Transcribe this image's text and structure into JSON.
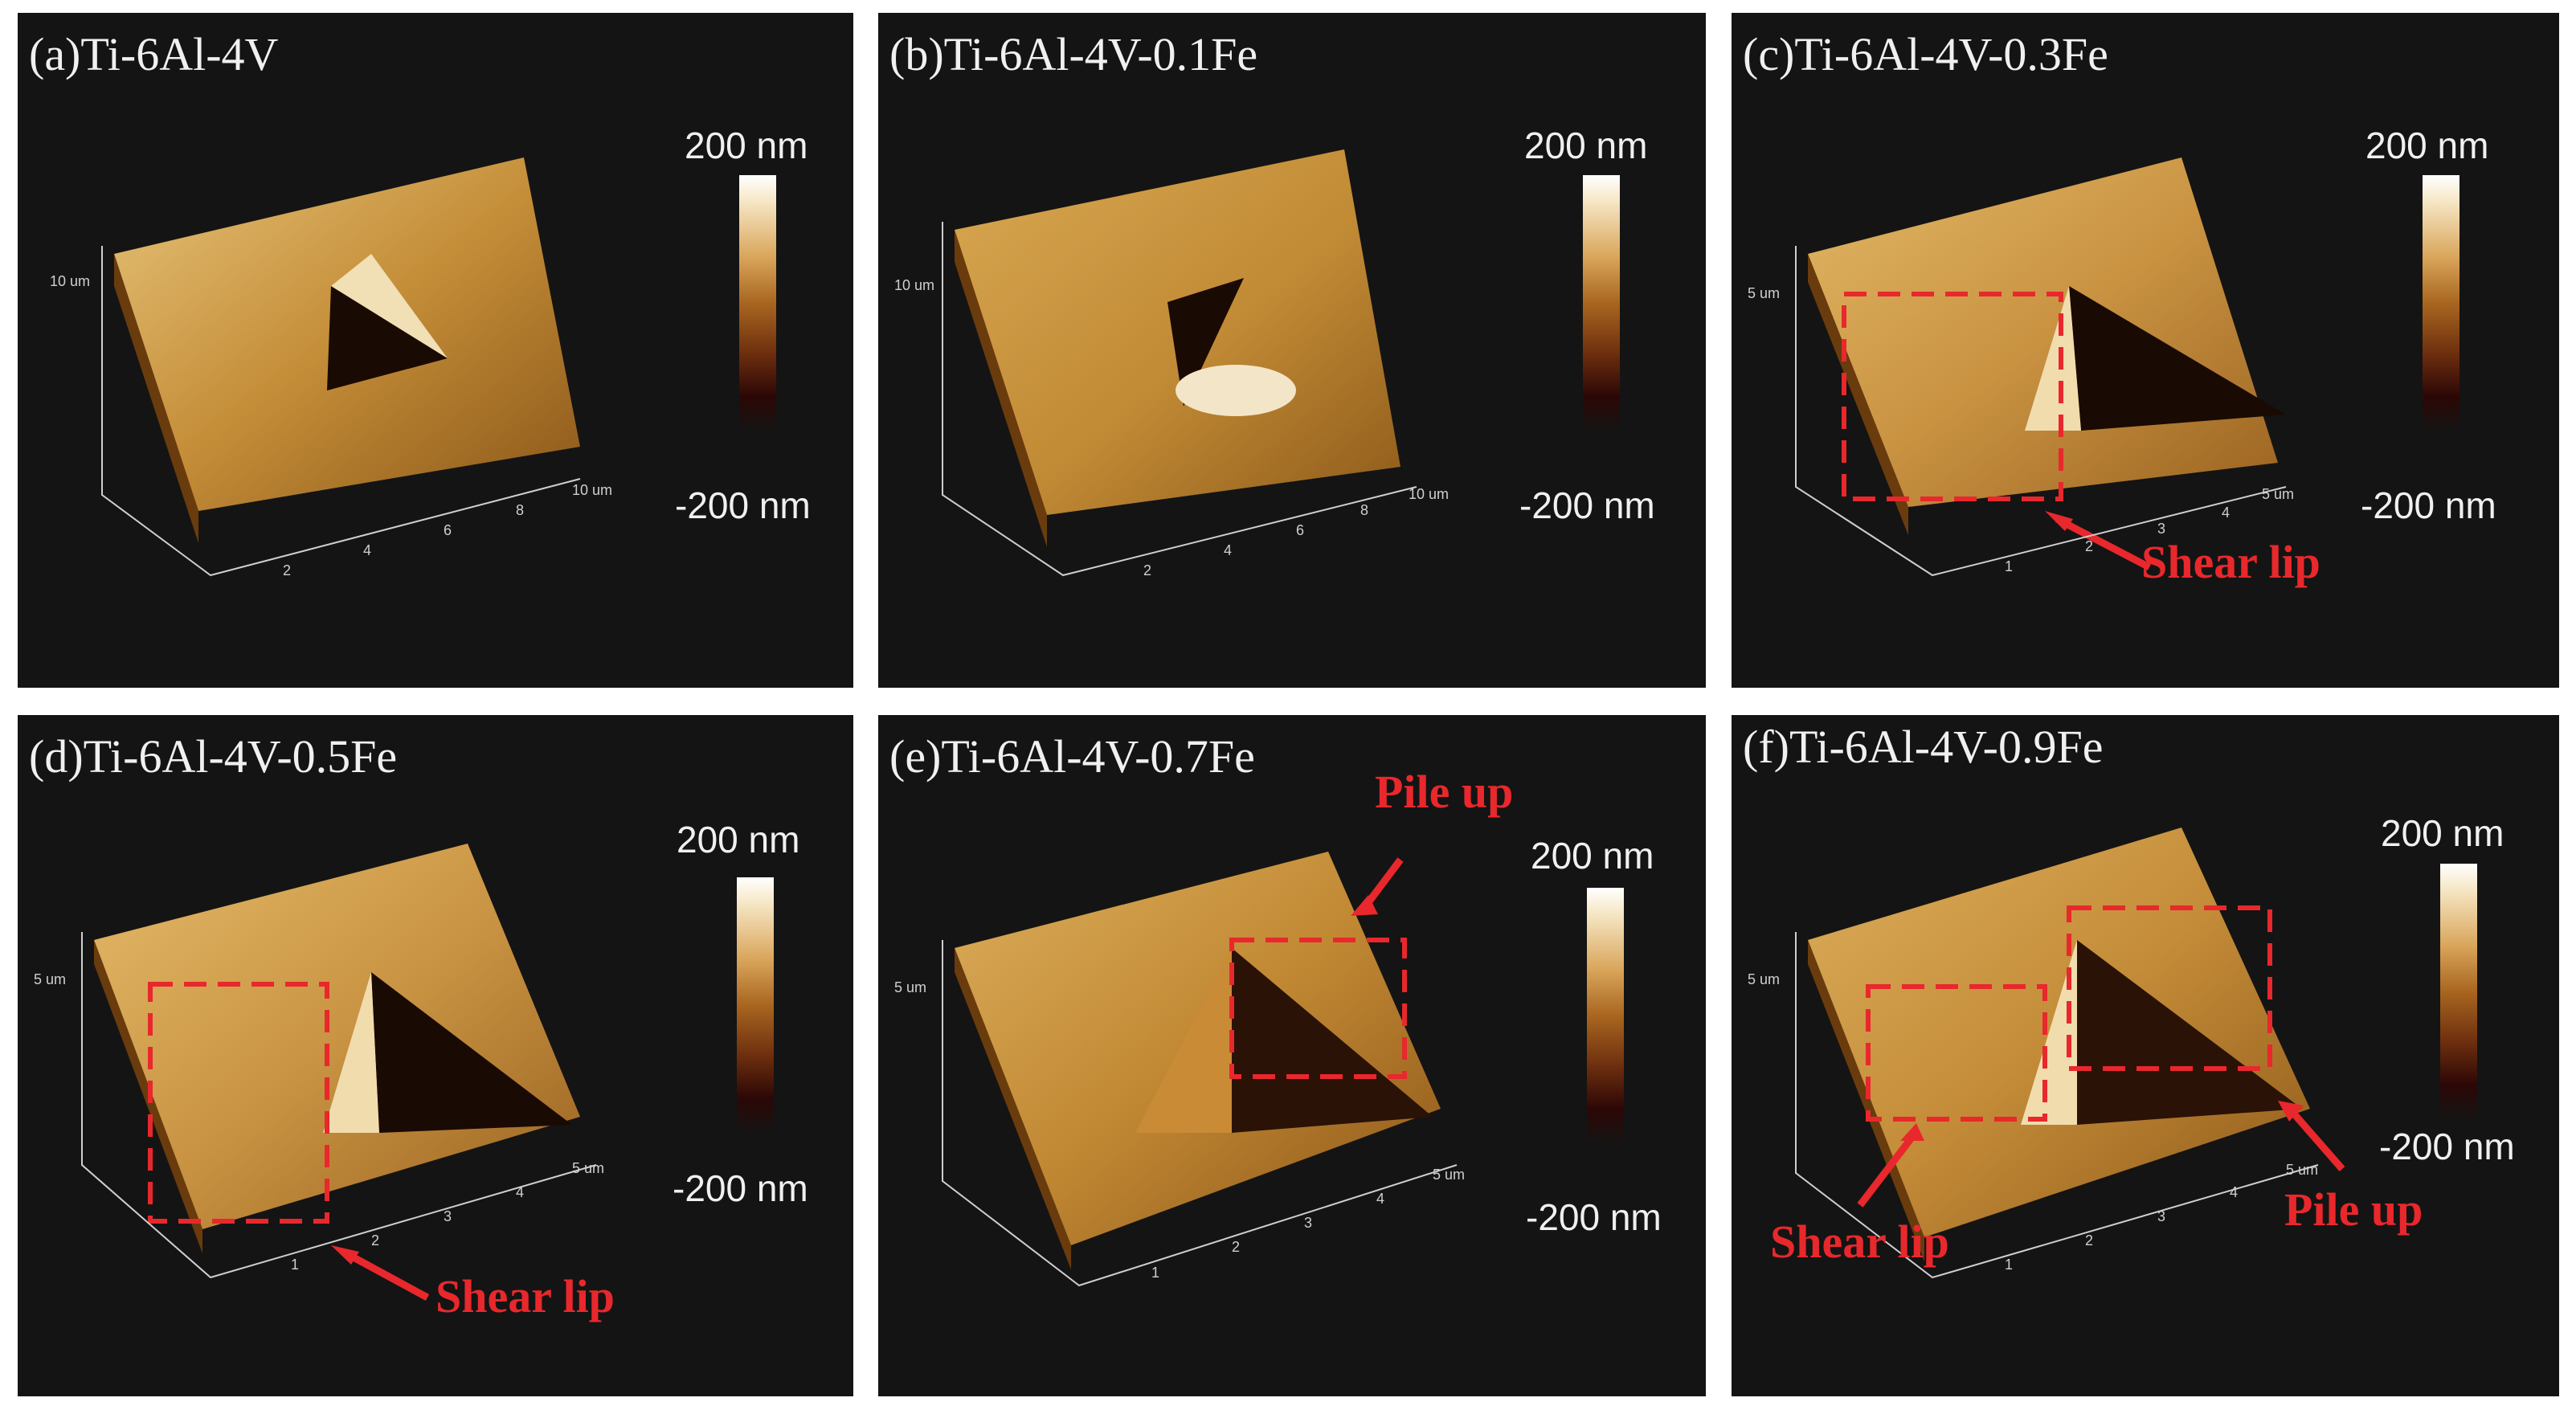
{
  "panels": [
    {
      "title": "(a)Ti-6Al-4V",
      "scale_max": "200 nm",
      "scale_min": "-200 nm",
      "axis_ticks": [
        "2",
        "4",
        "6",
        "8",
        "10 um",
        "10 um"
      ]
    },
    {
      "title": "(b)Ti-6Al-4V-0.1Fe",
      "scale_max": "200 nm",
      "scale_min": "-200 nm",
      "axis_ticks": [
        "2",
        "4",
        "6",
        "8",
        "10 um",
        "10 um"
      ]
    },
    {
      "title": "(c)Ti-6Al-4V-0.3Fe",
      "scale_max": "200 nm",
      "scale_min": "-200 nm",
      "axis_ticks": [
        "1",
        "2",
        "3",
        "4",
        "5 um",
        "5 um"
      ]
    },
    {
      "title": "(d)Ti-6Al-4V-0.5Fe",
      "scale_max": "200 nm",
      "scale_min": "-200 nm",
      "axis_ticks": [
        "1",
        "2",
        "3",
        "4",
        "5 um",
        "5 um"
      ]
    },
    {
      "title": "(e)Ti-6Al-4V-0.7Fe",
      "scale_max": "200 nm",
      "scale_min": "-200 nm",
      "axis_ticks": [
        "1",
        "2",
        "3",
        "4",
        "5 um",
        "5 um"
      ]
    },
    {
      "title": "(f)Ti-6Al-4V-0.9Fe",
      "scale_max": "200 nm",
      "scale_min": "-200 nm",
      "axis_ticks": [
        "1",
        "2",
        "3",
        "4",
        "5 um",
        "5 um"
      ]
    }
  ],
  "annotations": {
    "shear_lip": "Shear lip",
    "pile_up": "Pile up"
  },
  "colors": {
    "panel_bg": "#141414",
    "highlight": "#e8282c",
    "surface_light": "#e9c27a",
    "surface_dark": "#7a4a12"
  }
}
